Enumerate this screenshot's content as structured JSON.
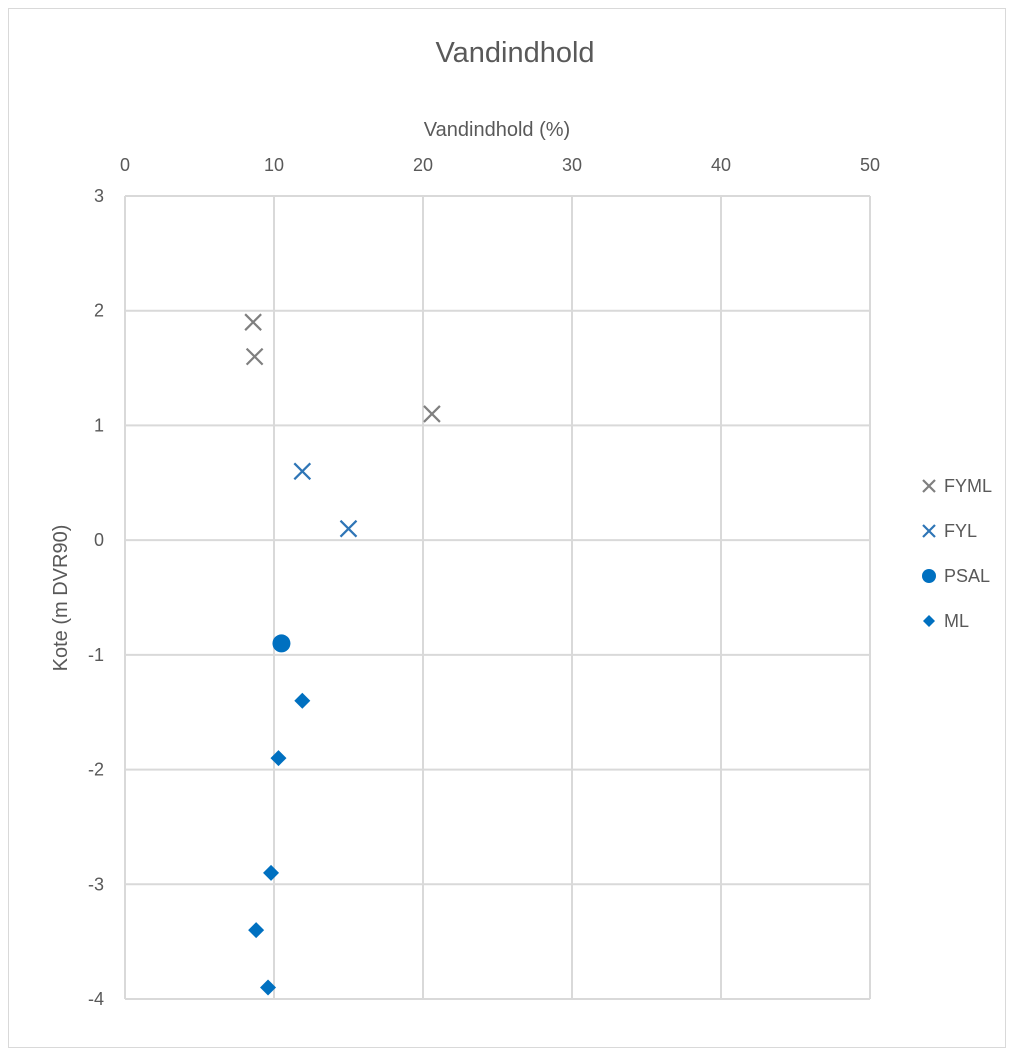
{
  "chart_data": {
    "type": "scatter",
    "title": "Vandindhold",
    "xlabel": "Vandindhold (%)",
    "ylabel": "Kote (m DVR90)",
    "x_axis_position": "top",
    "xlim": [
      0,
      50
    ],
    "ylim": [
      -4,
      3
    ],
    "x_ticks": [
      0,
      10,
      20,
      30,
      40,
      50
    ],
    "y_ticks": [
      3,
      2,
      1,
      0,
      -1,
      -2,
      -3,
      -4
    ],
    "grid": true,
    "legend_position": "right",
    "series": [
      {
        "name": "FYML",
        "marker": "x",
        "color": "#7f7f7f",
        "points": [
          {
            "x": 8.6,
            "y": 1.9
          },
          {
            "x": 8.7,
            "y": 1.6
          },
          {
            "x": 20.6,
            "y": 1.1
          }
        ]
      },
      {
        "name": "FYL",
        "marker": "x",
        "color": "#2e75b6",
        "points": [
          {
            "x": 11.9,
            "y": 0.6
          },
          {
            "x": 15.0,
            "y": 0.1
          }
        ]
      },
      {
        "name": "PSAL",
        "marker": "circle",
        "color": "#0070c0",
        "points": [
          {
            "x": 10.5,
            "y": -0.9
          }
        ]
      },
      {
        "name": "ML",
        "marker": "diamond",
        "color": "#0070c0",
        "points": [
          {
            "x": 11.9,
            "y": -1.4
          },
          {
            "x": 10.3,
            "y": -1.9
          },
          {
            "x": 9.8,
            "y": -2.9
          },
          {
            "x": 8.8,
            "y": -3.4
          },
          {
            "x": 9.6,
            "y": -3.9
          }
        ]
      }
    ]
  }
}
